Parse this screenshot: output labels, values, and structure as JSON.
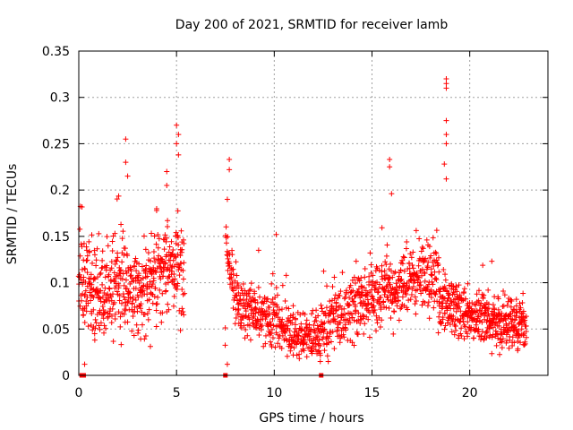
{
  "chart_data": {
    "type": "scatter",
    "title": "Day 200 of 2021, SRMTID for receiver lamb",
    "xlabel": "GPS time / hours",
    "ylabel": "SRMTID / TECUs",
    "xlim": [
      0,
      24
    ],
    "ylim": [
      0,
      0.35
    ],
    "xticks": [
      0,
      5,
      10,
      15,
      20
    ],
    "xtick_labels": [
      "0",
      "5",
      "10",
      "15",
      "20"
    ],
    "yticks": [
      0,
      0.05,
      0.1,
      0.15,
      0.2,
      0.25,
      0.3,
      0.35
    ],
    "ytick_labels": [
      "0",
      "0.05",
      "0.1",
      "0.15",
      "0.2",
      "0.25",
      "0.3",
      "0.35"
    ],
    "grid": true,
    "marker": "plus",
    "color": "#ff0000",
    "series": [
      {
        "name": "SRMTID",
        "segments": [
          {
            "x_start": 0.0,
            "x_end": 5.4,
            "n": 520,
            "baseline": [
              [
                0.0,
                0.11
              ],
              [
                1.0,
                0.085
              ],
              [
                2.0,
                0.095
              ],
              [
                3.0,
                0.085
              ],
              [
                4.0,
                0.11
              ],
              [
                5.0,
                0.12
              ],
              [
                5.4,
                0.11
              ]
            ],
            "spread": 0.035
          },
          {
            "x_start": 7.5,
            "x_end": 12.4,
            "n": 420,
            "baseline": [
              [
                7.5,
                0.15
              ],
              [
                8.0,
                0.08
              ],
              [
                9.0,
                0.065
              ],
              [
                10.0,
                0.06
              ],
              [
                11.0,
                0.045
              ],
              [
                12.0,
                0.04
              ],
              [
                12.4,
                0.04
              ]
            ],
            "spread": 0.02
          },
          {
            "x_start": 12.4,
            "x_end": 18.4,
            "n": 520,
            "baseline": [
              [
                12.4,
                0.055
              ],
              [
                13.5,
                0.065
              ],
              [
                14.5,
                0.08
              ],
              [
                15.5,
                0.09
              ],
              [
                16.5,
                0.1
              ],
              [
                17.5,
                0.11
              ],
              [
                18.4,
                0.1
              ]
            ],
            "spread": 0.025
          },
          {
            "x_start": 18.4,
            "x_end": 22.9,
            "n": 460,
            "baseline": [
              [
                18.4,
                0.08
              ],
              [
                19.5,
                0.07
              ],
              [
                20.5,
                0.06
              ],
              [
                21.5,
                0.055
              ],
              [
                22.9,
                0.055
              ]
            ],
            "spread": 0.02
          }
        ],
        "notable_points": [
          {
            "x": 2.4,
            "y": 0.255
          },
          {
            "x": 2.4,
            "y": 0.23
          },
          {
            "x": 2.5,
            "y": 0.215
          },
          {
            "x": 5.0,
            "y": 0.27
          },
          {
            "x": 5.1,
            "y": 0.26
          },
          {
            "x": 5.0,
            "y": 0.25
          },
          {
            "x": 5.1,
            "y": 0.238
          },
          {
            "x": 4.5,
            "y": 0.22
          },
          {
            "x": 4.5,
            "y": 0.205
          },
          {
            "x": 7.7,
            "y": 0.233
          },
          {
            "x": 7.7,
            "y": 0.222
          },
          {
            "x": 7.6,
            "y": 0.19
          },
          {
            "x": 15.9,
            "y": 0.233
          },
          {
            "x": 15.9,
            "y": 0.225
          },
          {
            "x": 16.0,
            "y": 0.196
          },
          {
            "x": 18.8,
            "y": 0.32
          },
          {
            "x": 18.8,
            "y": 0.315
          },
          {
            "x": 18.8,
            "y": 0.31
          },
          {
            "x": 18.8,
            "y": 0.275
          },
          {
            "x": 18.8,
            "y": 0.26
          },
          {
            "x": 18.8,
            "y": 0.25
          },
          {
            "x": 18.7,
            "y": 0.228
          },
          {
            "x": 18.8,
            "y": 0.212
          },
          {
            "x": 7.6,
            "y": 0.012
          },
          {
            "x": 0.3,
            "y": 0.012
          },
          {
            "x": 10.1,
            "y": 0.152
          },
          {
            "x": 9.2,
            "y": 0.135
          }
        ]
      }
    ],
    "zero_markers_x": [
      0.15,
      0.25,
      7.5,
      12.4
    ]
  }
}
